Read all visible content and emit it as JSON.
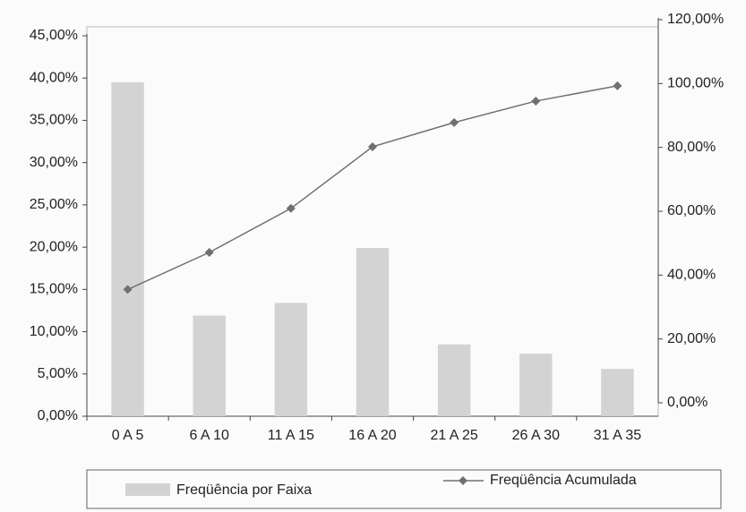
{
  "chart_data": {
    "type": "bar",
    "categories": [
      "0 A 5",
      "6 A 10",
      "11 A 15",
      "16 A 20",
      "21 A 25",
      "26 A 30",
      "31 A 35"
    ],
    "series": [
      {
        "name": "Freqüência por Faixa",
        "type": "bar",
        "color": "#d3d3d3",
        "values": [
          39.5,
          11.9,
          13.4,
          19.9,
          8.5,
          7.4,
          5.6
        ]
      },
      {
        "name": "Freqüência Acumulada",
        "type": "line",
        "axis": "y2",
        "color": "#707070",
        "values": [
          35.5,
          47.1,
          60.9,
          80.2,
          87.8,
          94.5,
          99.3
        ]
      }
    ],
    "ylim": [
      0,
      45
    ],
    "yticks": [
      {
        "value": 0,
        "label": "0,00%"
      },
      {
        "value": 5,
        "label": "5,00%"
      },
      {
        "value": 10,
        "label": "10,00%"
      },
      {
        "value": 15,
        "label": "15,00%"
      },
      {
        "value": 20,
        "label": "20,00%"
      },
      {
        "value": 25,
        "label": "25,00%"
      },
      {
        "value": 30,
        "label": "30,00%"
      },
      {
        "value": 35,
        "label": "35,00%"
      },
      {
        "value": 40,
        "label": "40,00%"
      },
      {
        "value": 45,
        "label": "45,00%"
      }
    ],
    "y2lim": [
      0,
      120
    ],
    "y2ticks": [
      {
        "value": 0,
        "label": "0,00%"
      },
      {
        "value": 20,
        "label": "20,00%"
      },
      {
        "value": 40,
        "label": "40,00%"
      },
      {
        "value": 60,
        "label": "60,00%"
      },
      {
        "value": 80,
        "label": "80,00%"
      },
      {
        "value": 100,
        "label": "100,00%"
      },
      {
        "value": 120,
        "label": "120,00%"
      }
    ],
    "legend": "bottom"
  }
}
